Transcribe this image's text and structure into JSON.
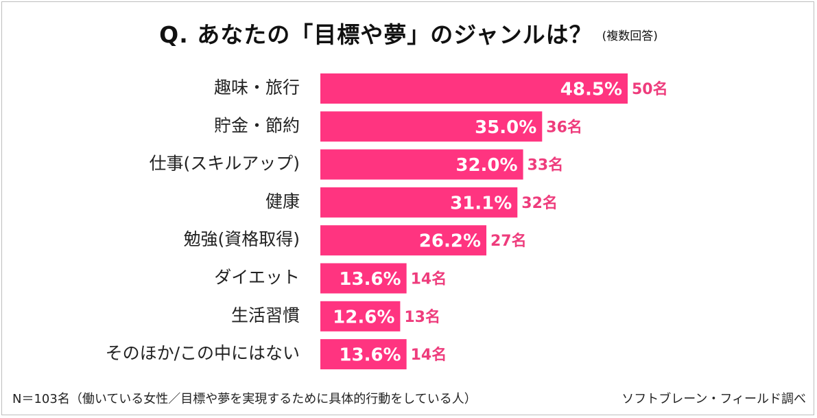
{
  "title": "Q.  あなたの「目標や夢」のジャンルは？",
  "subtitle": "(複数回答)",
  "footnote": "N＝103名（働いている女性／目標や夢を実現するために具体的行動をしている人）",
  "credit": "ソフトブレーン・フィールド調べ",
  "chart_data": {
    "type": "bar",
    "orientation": "horizontal",
    "categories": [
      "趣味・旅行",
      "貯金・節約",
      "仕事(スキルアップ)",
      "健康",
      "勉強(資格取得)",
      "ダイエット",
      "生活習慣",
      "そのほか/この中にはない"
    ],
    "values": [
      48.5,
      35.0,
      32.0,
      31.1,
      26.2,
      13.6,
      12.6,
      13.6
    ],
    "value_labels": [
      "48.5%",
      "35.0%",
      "32.0%",
      "31.1%",
      "26.2%",
      "13.6%",
      "12.6%",
      "13.6%"
    ],
    "count_labels": [
      "50名",
      "36名",
      "33名",
      "32名",
      "27名",
      "14名",
      "13名",
      "14名"
    ],
    "xlim": [
      0,
      48.5
    ],
    "bar_color": "#ff3480",
    "count_color": "#ee3c7c",
    "grid": false,
    "legend": "none"
  }
}
